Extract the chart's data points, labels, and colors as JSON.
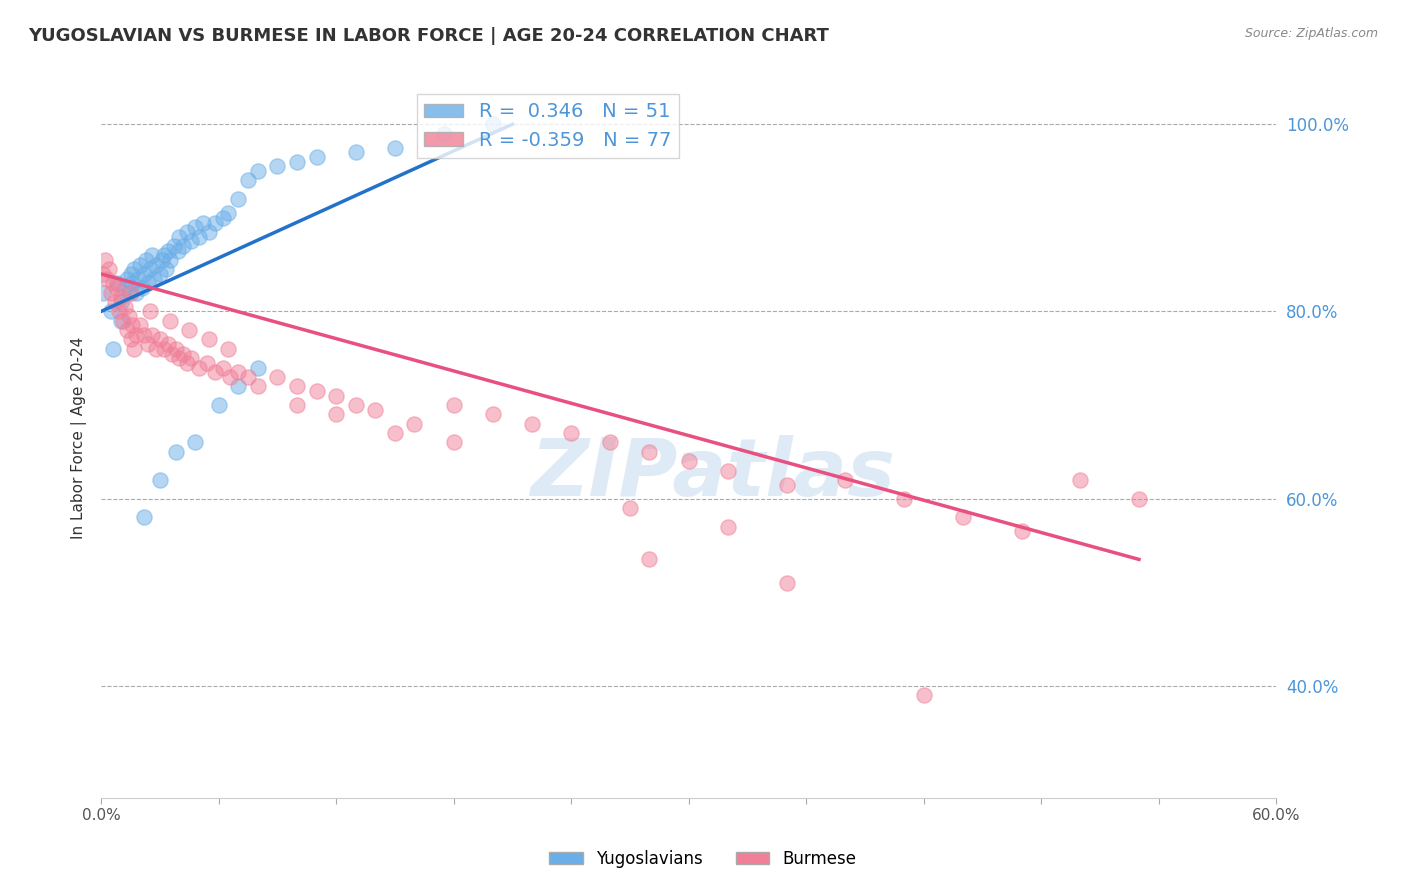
{
  "title": "YUGOSLAVIAN VS BURMESE IN LABOR FORCE | AGE 20-24 CORRELATION CHART",
  "source": "Source: ZipAtlas.com",
  "ylabel": "In Labor Force | Age 20-24",
  "right_yticks": [
    "100.0%",
    "80.0%",
    "60.0%",
    "40.0%"
  ],
  "right_ytick_vals": [
    1.0,
    0.8,
    0.6,
    0.4
  ],
  "xmin": 0.0,
  "xmax": 0.6,
  "ymin": 0.28,
  "ymax": 1.05,
  "legend_blue_label": "R =  0.346   N = 51",
  "legend_pink_label": "R = -0.359   N = 77",
  "blue_color": "#6aaee8",
  "pink_color": "#f08098",
  "blue_line_color": "#2272cc",
  "pink_line_color": "#e85080",
  "watermark": "ZIPatlas",
  "yug_scatter_x": [
    0.001,
    0.005,
    0.008,
    0.01,
    0.01,
    0.012,
    0.013,
    0.014,
    0.015,
    0.016,
    0.017,
    0.018,
    0.019,
    0.02,
    0.021,
    0.022,
    0.023,
    0.024,
    0.025,
    0.026,
    0.027,
    0.028,
    0.03,
    0.031,
    0.032,
    0.033,
    0.034,
    0.035,
    0.037,
    0.039,
    0.04,
    0.042,
    0.044,
    0.046,
    0.048,
    0.05,
    0.052,
    0.055,
    0.058,
    0.062,
    0.065,
    0.07,
    0.075,
    0.08,
    0.09,
    0.1,
    0.11,
    0.13,
    0.15,
    0.175,
    0.2
  ],
  "yug_scatter_y": [
    0.82,
    0.8,
    0.83,
    0.79,
    0.81,
    0.825,
    0.835,
    0.82,
    0.84,
    0.83,
    0.845,
    0.82,
    0.835,
    0.85,
    0.825,
    0.84,
    0.855,
    0.83,
    0.845,
    0.86,
    0.835,
    0.85,
    0.84,
    0.855,
    0.86,
    0.845,
    0.865,
    0.855,
    0.87,
    0.865,
    0.88,
    0.87,
    0.885,
    0.875,
    0.89,
    0.88,
    0.895,
    0.885,
    0.895,
    0.9,
    0.905,
    0.92,
    0.94,
    0.95,
    0.955,
    0.96,
    0.965,
    0.97,
    0.975,
    0.99,
    1.0
  ],
  "yug_scatter_y2": [
    0.76,
    0.58,
    0.62,
    0.65,
    0.66,
    0.7,
    0.72,
    0.74
  ],
  "yug_scatter_x2": [
    0.006,
    0.022,
    0.03,
    0.038,
    0.048,
    0.06,
    0.07,
    0.08
  ],
  "bur_scatter_x": [
    0.001,
    0.002,
    0.003,
    0.004,
    0.005,
    0.006,
    0.007,
    0.008,
    0.009,
    0.01,
    0.011,
    0.012,
    0.013,
    0.014,
    0.015,
    0.016,
    0.017,
    0.018,
    0.02,
    0.022,
    0.024,
    0.026,
    0.028,
    0.03,
    0.032,
    0.034,
    0.036,
    0.038,
    0.04,
    0.042,
    0.044,
    0.046,
    0.05,
    0.054,
    0.058,
    0.062,
    0.066,
    0.07,
    0.075,
    0.08,
    0.09,
    0.1,
    0.11,
    0.12,
    0.13,
    0.14,
    0.16,
    0.18,
    0.2,
    0.22,
    0.24,
    0.26,
    0.28,
    0.3,
    0.32,
    0.35,
    0.38,
    0.41,
    0.44,
    0.47,
    0.5,
    0.53,
    0.015,
    0.025,
    0.035,
    0.045,
    0.055,
    0.065,
    0.1,
    0.12,
    0.15,
    0.18,
    0.27,
    0.32,
    0.28,
    0.35,
    0.42
  ],
  "bur_scatter_y": [
    0.84,
    0.855,
    0.835,
    0.845,
    0.82,
    0.83,
    0.81,
    0.825,
    0.8,
    0.815,
    0.79,
    0.805,
    0.78,
    0.795,
    0.77,
    0.785,
    0.76,
    0.775,
    0.785,
    0.775,
    0.765,
    0.775,
    0.76,
    0.77,
    0.76,
    0.765,
    0.755,
    0.76,
    0.75,
    0.755,
    0.745,
    0.75,
    0.74,
    0.745,
    0.735,
    0.74,
    0.73,
    0.735,
    0.73,
    0.72,
    0.73,
    0.72,
    0.715,
    0.71,
    0.7,
    0.695,
    0.68,
    0.7,
    0.69,
    0.68,
    0.67,
    0.66,
    0.65,
    0.64,
    0.63,
    0.615,
    0.62,
    0.6,
    0.58,
    0.565,
    0.62,
    0.6,
    0.82,
    0.8,
    0.79,
    0.78,
    0.77,
    0.76,
    0.7,
    0.69,
    0.67,
    0.66,
    0.59,
    0.57,
    0.535,
    0.51,
    0.39
  ],
  "yug_line_x": [
    0.0,
    0.21
  ],
  "yug_line_y": [
    0.8,
    1.0
  ],
  "bur_line_x": [
    0.0,
    0.53
  ],
  "bur_line_y": [
    0.84,
    0.535
  ]
}
